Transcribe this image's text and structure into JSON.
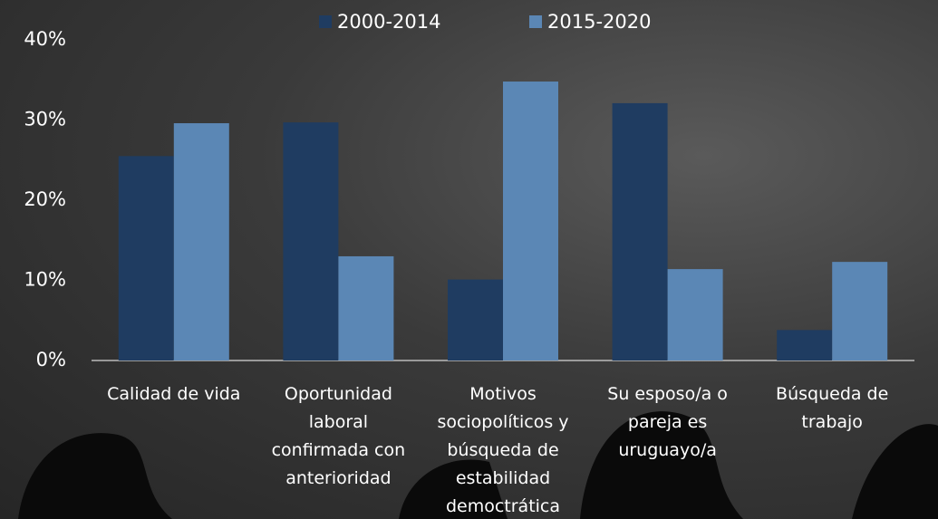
{
  "chart_data": {
    "type": "bar",
    "categories": [
      "Calidad de vida",
      "Oportunidad laboral confirmada con anterioridad",
      "Motivos sociopolíticos y búsqueda de estabilidad democtrática",
      "Su esposo/a o pareja es uruguayo/a",
      "Búsqueda de trabajo"
    ],
    "series": [
      {
        "name": "2000-2014",
        "color": "#1f3c61",
        "values": [
          25.5,
          29.7,
          10.1,
          32.1,
          3.8
        ]
      },
      {
        "name": "2015-2020",
        "color": "#5b87b5",
        "values": [
          29.6,
          13.0,
          34.8,
          11.4,
          12.3
        ]
      }
    ],
    "ylim": [
      0,
      40
    ],
    "yticks": [
      {
        "value": 0,
        "label": "0%"
      },
      {
        "value": 10,
        "label": "10%"
      },
      {
        "value": 20,
        "label": "20%"
      },
      {
        "value": 30,
        "label": "30%"
      },
      {
        "value": 40,
        "label": "40%"
      }
    ],
    "legend": "top",
    "grid": false
  }
}
